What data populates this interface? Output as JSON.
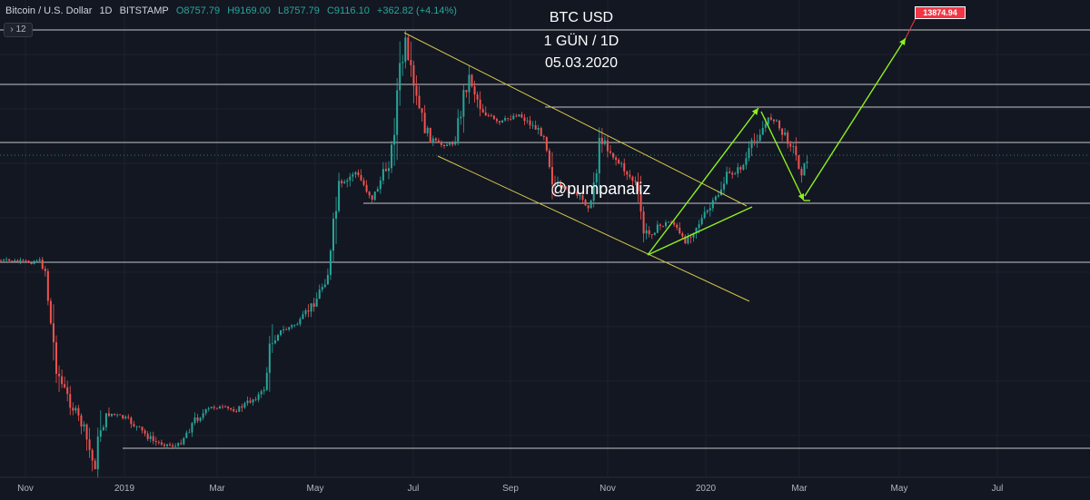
{
  "header": {
    "symbol": "Bitcoin / U.S. Dollar",
    "interval": "1D",
    "exchange": "BITSTAMP",
    "open": "O8757.79",
    "high": "H9169.00",
    "low": "L8757.79",
    "close": "C9116.10",
    "change": "+362.82 (+4.14%)",
    "collapse_label": "12"
  },
  "annotations": {
    "title_line1": "BTC USD",
    "title_line2": "1 GÜN / 1D",
    "title_line3": "05.03.2020",
    "watermark": "@pumpanaliz",
    "target_label": "13874.94"
  },
  "colors": {
    "background": "#131722",
    "up": "#26a69a",
    "down": "#ef5350",
    "channel": "#d4c64a",
    "arrows": "#8ef01f",
    "levels": "#ffffff",
    "target": "#f23645"
  },
  "chart_data": {
    "type": "candlestick",
    "x_tick_labels": [
      "Nov",
      "2019",
      "Mar",
      "May",
      "Jul",
      "Sep",
      "Nov",
      "2020",
      "Mar",
      "May",
      "Jul"
    ],
    "grid": true,
    "target_price": 13874.94,
    "last_close": 9116.1
  }
}
